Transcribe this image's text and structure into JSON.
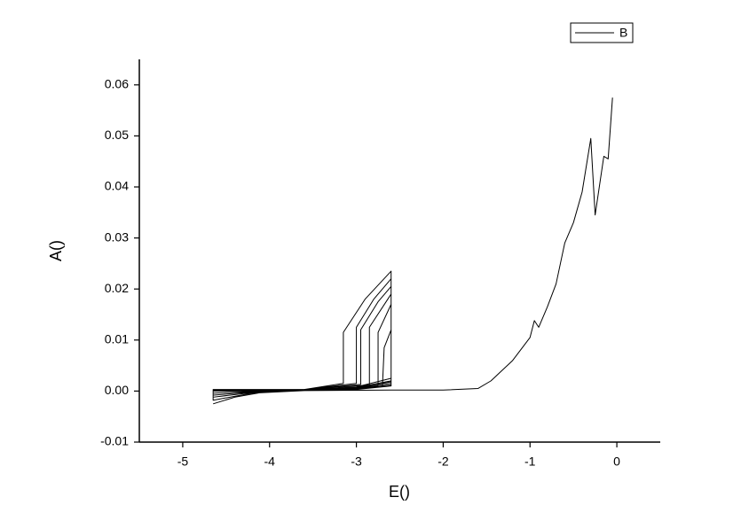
{
  "chart_data": {
    "type": "line",
    "x_label": "E()",
    "y_label": "A()",
    "xlim": [
      -5.5,
      0.5
    ],
    "ylim": [
      -0.01,
      0.065
    ],
    "xticks": [
      -5,
      -4,
      -3,
      -2,
      -1,
      0
    ],
    "yticks": [
      -0.01,
      {
        "value": 0,
        "label": "0.00"
      },
      0.01,
      0.02,
      0.03,
      0.04,
      0.05,
      0.06
    ],
    "legend": "upper right",
    "series": [
      {
        "name": "B",
        "color": "#000000",
        "x": [
          -4.65,
          -4.4,
          -4.1,
          -3.6,
          -3.0,
          -2.6,
          -2.6,
          -2.9,
          -3.15,
          -3.15,
          -3.6,
          -4.65,
          -4.65,
          -4.2,
          -3.6,
          -3.0,
          -2.6,
          -2.6,
          -2.8,
          -3.0,
          -3.0,
          -3.6,
          -4.65,
          -4.65,
          -4.2,
          -3.6,
          -3.0,
          -2.6,
          -2.6,
          -2.75,
          -2.95,
          -2.95,
          -3.6,
          -4.65,
          -4.65,
          -4.2,
          -3.6,
          -3.0,
          -2.6,
          -2.6,
          -2.85,
          -2.85,
          -3.6,
          -4.65,
          -4.65,
          -4.2,
          -3.6,
          -3.0,
          -2.6,
          -2.6,
          -2.75,
          -2.75,
          -3.6,
          -4.65,
          -4.65,
          -3.6,
          -3.0,
          -2.6,
          -2.6,
          -2.68,
          -2.7,
          -3.6,
          -4.65,
          -4.65,
          -3.6,
          -2.6,
          -2.0,
          -1.6,
          -1.45,
          -1.2,
          -1.0,
          -0.95,
          -0.9,
          -0.8,
          -0.7,
          -0.6,
          -0.5,
          -0.4,
          -0.3,
          -0.25,
          -0.15,
          -0.1,
          -0.05
        ],
        "values": [
          -0.0025,
          -0.0012,
          -0.0003,
          0.0002,
          0.0008,
          0.0025,
          0.0235,
          0.018,
          0.0115,
          0.0015,
          0.0003,
          0.0002,
          -0.0018,
          -0.0004,
          0.0001,
          0.0007,
          0.002,
          0.022,
          0.018,
          0.0125,
          0.0015,
          0.0003,
          0.0002,
          -0.0012,
          -0.0003,
          0.0001,
          0.0006,
          0.0018,
          0.0205,
          0.0175,
          0.012,
          0.0013,
          0.0003,
          0.0003,
          -0.0008,
          -0.0002,
          0.0001,
          0.0005,
          0.0015,
          0.019,
          0.0125,
          0.0012,
          0.0003,
          0.0003,
          -0.0004,
          -0.0001,
          0.0001,
          0.0004,
          0.0012,
          0.017,
          0.0115,
          0.001,
          0.0002,
          0.0002,
          0,
          0.0001,
          0.0003,
          0.001,
          0.012,
          0.0085,
          0.0009,
          0.0002,
          0.0002,
          0.0001,
          0.0001,
          0.0002,
          0.0002,
          0.0005,
          0.002,
          0.006,
          0.0105,
          0.0138,
          0.0125,
          0.0165,
          0.021,
          0.029,
          0.033,
          0.039,
          0.0495,
          0.0345,
          0.046,
          0.0455,
          0.0575
        ]
      }
    ]
  }
}
